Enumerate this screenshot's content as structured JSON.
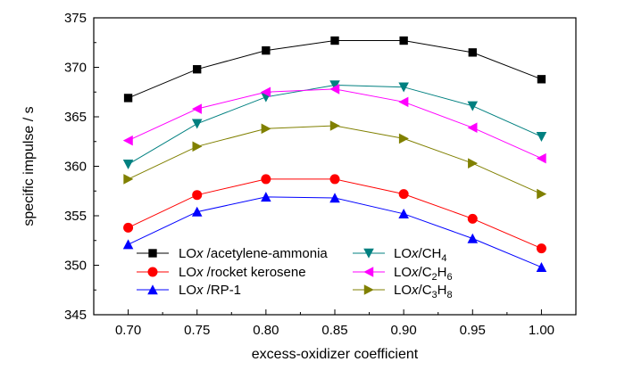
{
  "chart_data": {
    "type": "line",
    "xlabel": "excess-oxidizer coefficient",
    "ylabel": "specific impulse / s",
    "x": [
      0.7,
      0.75,
      0.8,
      0.85,
      0.9,
      0.95,
      1.0
    ],
    "x_tick_labels": [
      "0.70",
      "0.75",
      "0.80",
      "0.85",
      "0.90",
      "0.95",
      "1.00"
    ],
    "xlim": [
      0.675,
      1.025
    ],
    "ylim": [
      345,
      375
    ],
    "y_ticks": [
      345,
      350,
      355,
      360,
      365,
      370,
      375
    ],
    "grid": false,
    "legend_placement": "bottom-center",
    "series": [
      {
        "name": "LOx/acetylene-ammonia",
        "legend": {
          "pre": "LO",
          "it": "x",
          "post": "/acetylene-ammonia"
        },
        "marker": "square",
        "color": "#000000",
        "values": [
          366.9,
          369.8,
          371.7,
          372.7,
          372.7,
          371.5,
          368.8
        ]
      },
      {
        "name": "LOx/rocket kerosene",
        "legend": {
          "pre": "LO",
          "it": "x",
          "post": "/rocket kerosene"
        },
        "marker": "circle",
        "color": "#ff0000",
        "values": [
          353.8,
          357.1,
          358.7,
          358.7,
          357.2,
          354.7,
          351.7
        ]
      },
      {
        "name": "LOx/RP-1",
        "legend": {
          "pre": "LO",
          "it": "x",
          "post": "/RP-1"
        },
        "marker": "triangle-up",
        "color": "#0000ff",
        "values": [
          352.1,
          355.4,
          356.9,
          356.8,
          355.2,
          352.7,
          349.8
        ]
      },
      {
        "name": "LOx/CH4",
        "legend": {
          "pre": "LO",
          "it": "x",
          "post": "/CH4"
        },
        "marker": "triangle-down",
        "color": "#008080",
        "values": [
          360.2,
          364.3,
          367.0,
          368.2,
          368.0,
          366.1,
          363.0
        ]
      },
      {
        "name": "LOx/C2H6",
        "legend": {
          "pre": "LO",
          "it": "x",
          "post": "/C2H6"
        },
        "marker": "triangle-left",
        "color": "#ff00ff",
        "values": [
          362.6,
          365.8,
          367.5,
          367.8,
          366.5,
          363.9,
          360.8
        ]
      },
      {
        "name": "LOx/C3H8",
        "legend": {
          "pre": "LO",
          "it": "x",
          "post": "/C3H8"
        },
        "marker": "triangle-right",
        "color": "#808000",
        "values": [
          358.7,
          362.0,
          363.8,
          364.1,
          362.8,
          360.3,
          357.2
        ]
      }
    ]
  }
}
